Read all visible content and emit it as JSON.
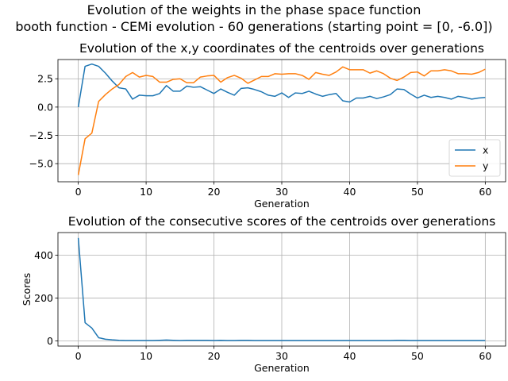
{
  "figure": {
    "suptitle_line1": "Evolution of the weights in the phase space  function",
    "suptitle_line2": "booth function - CEMi evolution - 60 generations (starting point = [0, -6.0])"
  },
  "chart_data": [
    {
      "type": "line",
      "title": "Evolution of the x,y coordinates of the centroids over generations",
      "xlabel": "Generation",
      "ylabel": "",
      "xlim": [
        -3,
        63
      ],
      "ylim": [
        -6.6,
        4.2
      ],
      "xticks": [
        0,
        10,
        20,
        30,
        40,
        50,
        60
      ],
      "yticks": [
        -5.0,
        -2.5,
        0.0,
        2.5
      ],
      "ytick_labels": [
        "−5.0",
        "−2.5",
        "0.0",
        "2.5"
      ],
      "grid": true,
      "legend": "lower-right",
      "x": [
        0,
        1,
        2,
        3,
        4,
        5,
        6,
        7,
        8,
        9,
        10,
        11,
        12,
        13,
        14,
        15,
        16,
        17,
        18,
        19,
        20,
        21,
        22,
        23,
        24,
        25,
        26,
        27,
        28,
        29,
        30,
        31,
        32,
        33,
        34,
        35,
        36,
        37,
        38,
        39,
        40,
        41,
        42,
        43,
        44,
        45,
        46,
        47,
        48,
        49,
        50,
        51,
        52,
        53,
        54,
        55,
        56,
        57,
        58,
        59,
        60
      ],
      "series": [
        {
          "name": "x",
          "color": "#1f77b4",
          "values": [
            0.0,
            3.6,
            3.8,
            3.6,
            3.0,
            2.3,
            1.7,
            1.6,
            0.7,
            1.05,
            1.0,
            1.0,
            1.2,
            1.9,
            1.4,
            1.4,
            1.85,
            1.75,
            1.8,
            1.5,
            1.2,
            1.6,
            1.3,
            1.05,
            1.65,
            1.7,
            1.55,
            1.35,
            1.05,
            0.95,
            1.25,
            0.85,
            1.25,
            1.2,
            1.4,
            1.15,
            0.95,
            1.1,
            1.2,
            0.55,
            0.45,
            0.8,
            0.8,
            0.95,
            0.75,
            0.9,
            1.1,
            1.6,
            1.55,
            1.15,
            0.8,
            1.05,
            0.85,
            0.95,
            0.85,
            0.7,
            0.95,
            0.85,
            0.7,
            0.8,
            0.85
          ]
        },
        {
          "name": "y",
          "color": "#ff7f0e",
          "values": [
            -6.0,
            -2.8,
            -2.3,
            0.5,
            1.1,
            1.6,
            2.0,
            2.7,
            3.05,
            2.65,
            2.8,
            2.7,
            2.2,
            2.2,
            2.45,
            2.5,
            2.15,
            2.15,
            2.65,
            2.75,
            2.8,
            2.2,
            2.6,
            2.8,
            2.55,
            2.1,
            2.4,
            2.7,
            2.7,
            2.95,
            2.9,
            2.95,
            2.95,
            2.8,
            2.45,
            3.05,
            2.9,
            2.8,
            3.1,
            3.55,
            3.3,
            3.3,
            3.3,
            3.0,
            3.2,
            2.95,
            2.55,
            2.35,
            2.65,
            3.05,
            3.1,
            2.75,
            3.2,
            3.2,
            3.3,
            3.2,
            2.95,
            2.95,
            2.9,
            3.05,
            3.35
          ]
        }
      ]
    },
    {
      "type": "line",
      "title": "Evolution of the consecutive scores of the centroids over generations",
      "xlabel": "Generation",
      "ylabel": "Scores",
      "xlim": [
        -3,
        63
      ],
      "ylim": [
        -24,
        505
      ],
      "xticks": [
        0,
        10,
        20,
        30,
        40,
        50,
        60
      ],
      "yticks": [
        0,
        200,
        400
      ],
      "ytick_labels": [
        "0",
        "200",
        "400"
      ],
      "grid": true,
      "x": [
        0,
        1,
        2,
        3,
        4,
        5,
        6,
        7,
        8,
        9,
        10,
        11,
        12,
        13,
        14,
        15,
        16,
        17,
        18,
        19,
        20,
        21,
        22,
        23,
        24,
        25,
        26,
        27,
        28,
        29,
        30,
        31,
        32,
        33,
        34,
        35,
        36,
        37,
        38,
        39,
        40,
        41,
        42,
        43,
        44,
        45,
        46,
        47,
        48,
        49,
        50,
        51,
        52,
        53,
        54,
        55,
        56,
        57,
        58,
        59,
        60
      ],
      "series": [
        {
          "color": "#1f77b4",
          "values": [
            480,
            85,
            60,
            15,
            8,
            5,
            3,
            2,
            2,
            2,
            2,
            2,
            3,
            4,
            3,
            2,
            3,
            3,
            3,
            3,
            2,
            3,
            2,
            2,
            3,
            3,
            2,
            2,
            2,
            2,
            2,
            2,
            2,
            2,
            2,
            2,
            2,
            2,
            2,
            2,
            2,
            2,
            2,
            2,
            2,
            2,
            2,
            3,
            3,
            2,
            2,
            2,
            2,
            2,
            2,
            2,
            2,
            2,
            2,
            2,
            2
          ]
        }
      ]
    }
  ]
}
